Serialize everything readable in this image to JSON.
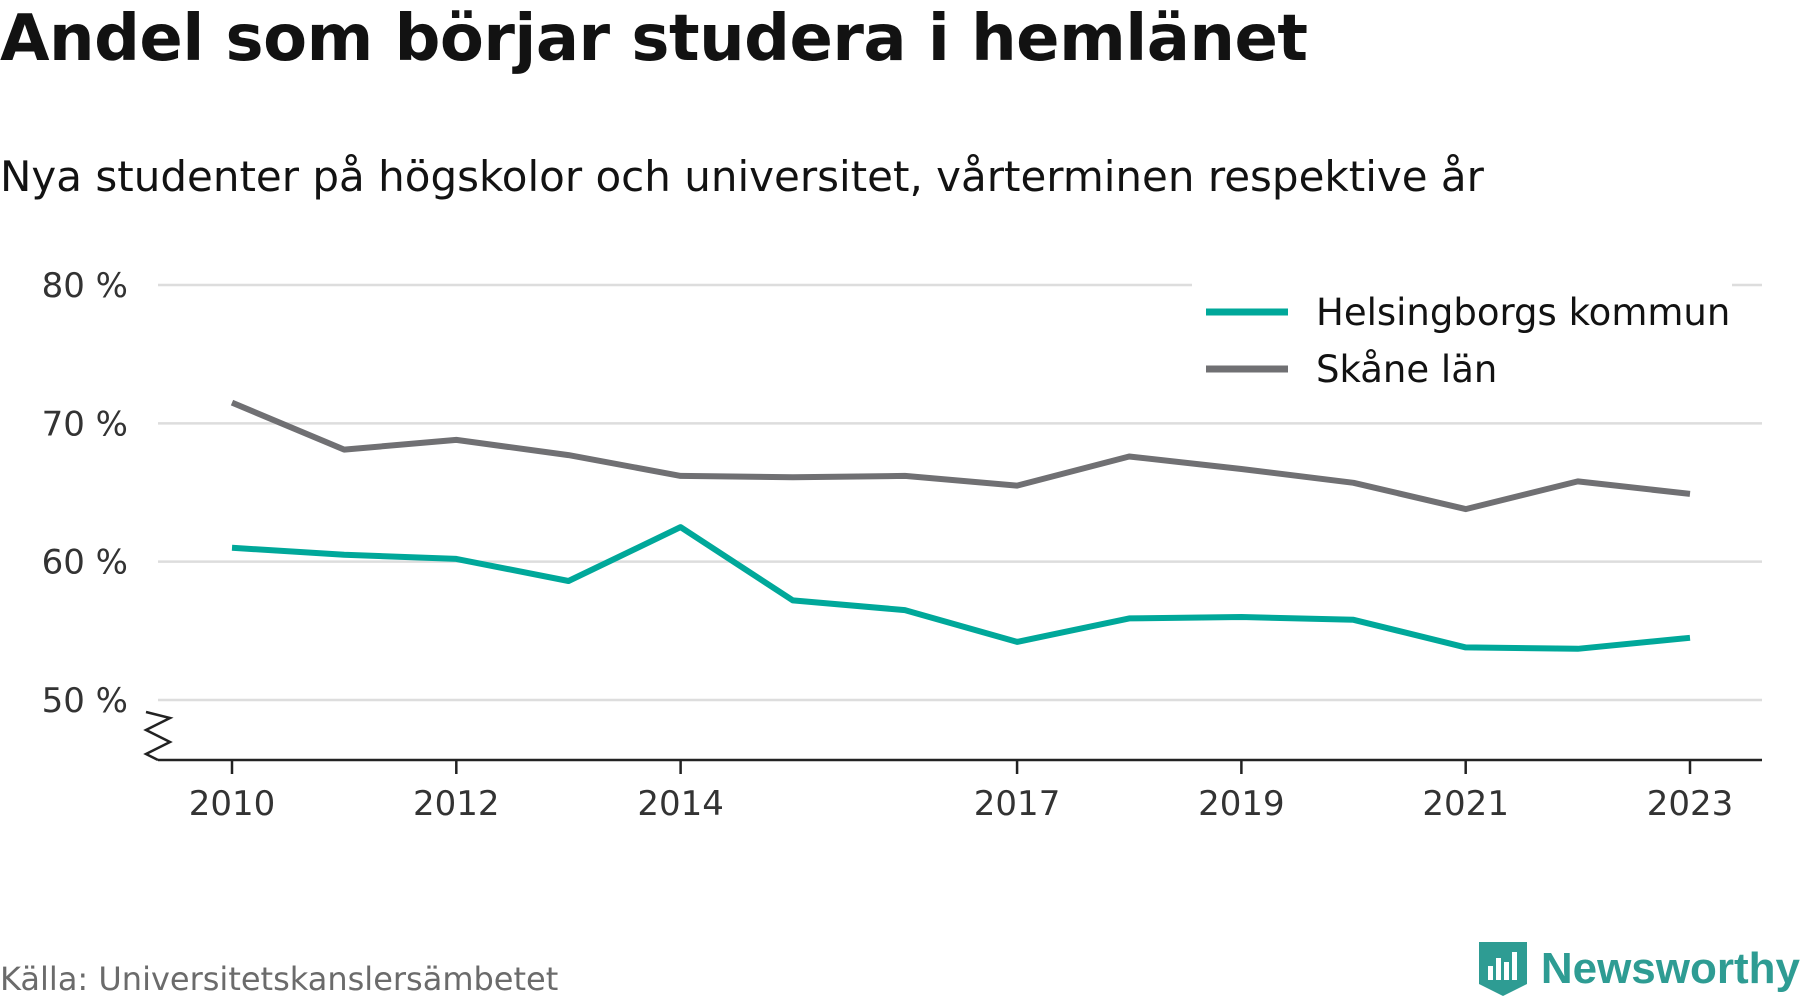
{
  "title": "Andel som börjar studera i hemlänet",
  "subtitle": "Nya studenter på högskolor och universitet, vårterminen respektive år",
  "source": "Källa: Universitetskanslersämbetet",
  "brand": "Newsworthy",
  "colors": {
    "series_1": "#00a89a",
    "series_2": "#707073",
    "grid": "#dddddd",
    "axis": "#222222",
    "brand": "#2e9c93"
  },
  "chart_data": {
    "type": "line",
    "x": [
      2010,
      2011,
      2012,
      2013,
      2014,
      2015,
      2016,
      2017,
      2018,
      2019,
      2020,
      2021,
      2022,
      2023
    ],
    "x_tick_labels": [
      "2010",
      "2012",
      "2014",
      "2017",
      "2019",
      "2021",
      "2023"
    ],
    "y_ticks": [
      50,
      60,
      70,
      80
    ],
    "y_tick_labels": [
      "50 %",
      "60 %",
      "70 %",
      "80 %"
    ],
    "ylim": [
      45.5,
      80
    ],
    "y_axis_break": true,
    "grid": "horizontal",
    "legend_position": "top-right",
    "series": [
      {
        "name": "Helsingborgs kommun",
        "color": "#00a89a",
        "values": [
          61.0,
          60.5,
          60.2,
          58.6,
          62.5,
          57.2,
          56.5,
          54.2,
          55.9,
          56.0,
          55.8,
          53.8,
          53.7,
          54.5
        ]
      },
      {
        "name": "Skåne län",
        "color": "#707073",
        "values": [
          71.5,
          68.1,
          68.8,
          67.7,
          66.2,
          66.1,
          66.2,
          65.5,
          67.6,
          66.7,
          65.7,
          63.8,
          65.8,
          64.9
        ]
      }
    ]
  }
}
